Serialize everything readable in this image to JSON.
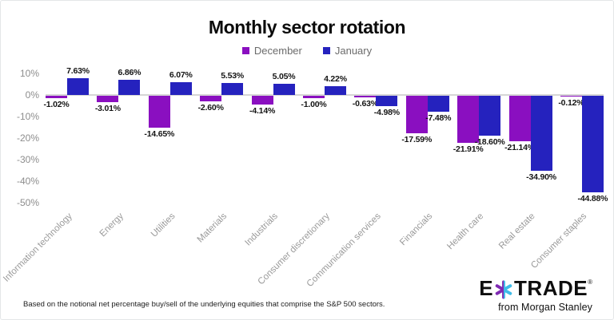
{
  "footnote": "Based on the notional net percentage buy/sell of the underlying equities that comprise the S&P 500 sectors.",
  "logo": {
    "text1": "E",
    "text2": "TRADE",
    "registered": "®",
    "tagline": "from Morgan Stanley",
    "star_purple": "#7f2ab3",
    "star_teal": "#3fbbe8"
  },
  "chart_data": {
    "type": "bar",
    "title": "Monthly sector rotation",
    "categories": [
      "Information technology",
      "Energy",
      "Utilities",
      "Materials",
      "Industrials",
      "Consumer discretionary",
      "Communication services",
      "Financials",
      "Health care",
      "Real estate",
      "Consumer staples"
    ],
    "series": [
      {
        "name": "December",
        "color": "#8a0fc0",
        "values": [
          -1.02,
          -3.01,
          -14.65,
          -2.6,
          -4.14,
          -1.0,
          -0.63,
          -17.59,
          -21.91,
          -21.14,
          -0.12
        ]
      },
      {
        "name": "January",
        "color": "#2522be",
        "values": [
          7.63,
          6.86,
          6.07,
          5.53,
          5.05,
          4.22,
          -4.98,
          -7.48,
          -18.6,
          -34.9,
          -44.88
        ]
      }
    ],
    "xlabel": "",
    "ylabel": "",
    "ylim": [
      -50,
      10
    ],
    "y_ticks": [
      10,
      0,
      -10,
      -20,
      -30,
      -40,
      -50
    ],
    "y_tick_suffix": "%",
    "value_label_suffix": "%",
    "grid": "off",
    "legend_position": "top-center"
  }
}
